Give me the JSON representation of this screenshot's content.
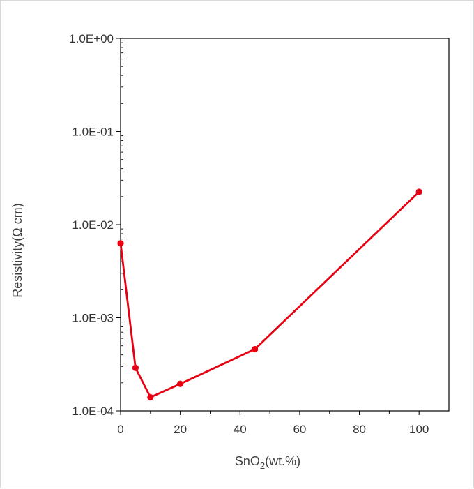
{
  "chart_data": {
    "type": "line",
    "title": "",
    "xlabel": "SnO2(wt.%)",
    "xlabel_parts": {
      "pre": "SnO",
      "sub": "2",
      "post": "(wt.%)"
    },
    "ylabel": "Resistivity(Ω cm)",
    "xlim": [
      0,
      110
    ],
    "ylim": [
      0.0001,
      1
    ],
    "yscale": "log",
    "grid": false,
    "x_ticks": [
      {
        "value": 0,
        "label": "0"
      },
      {
        "value": 20,
        "label": "20"
      },
      {
        "value": 40,
        "label": "40"
      },
      {
        "value": 60,
        "label": "60"
      },
      {
        "value": 80,
        "label": "80"
      },
      {
        "value": 100,
        "label": "100"
      }
    ],
    "y_ticks": [
      {
        "value": 0.0001,
        "label": "1.0E-04"
      },
      {
        "value": 0.001,
        "label": "1.0E-03"
      },
      {
        "value": 0.01,
        "label": "1.0E-02"
      },
      {
        "value": 0.1,
        "label": "1.0E-01"
      },
      {
        "value": 1,
        "label": "1.0E+00"
      }
    ],
    "series": [
      {
        "color": "#e60012",
        "x": [
          0,
          5,
          10,
          20,
          45,
          100
        ],
        "y": [
          0.0063,
          0.00029,
          0.00014,
          0.000195,
          0.00046,
          0.0225
        ]
      }
    ]
  }
}
